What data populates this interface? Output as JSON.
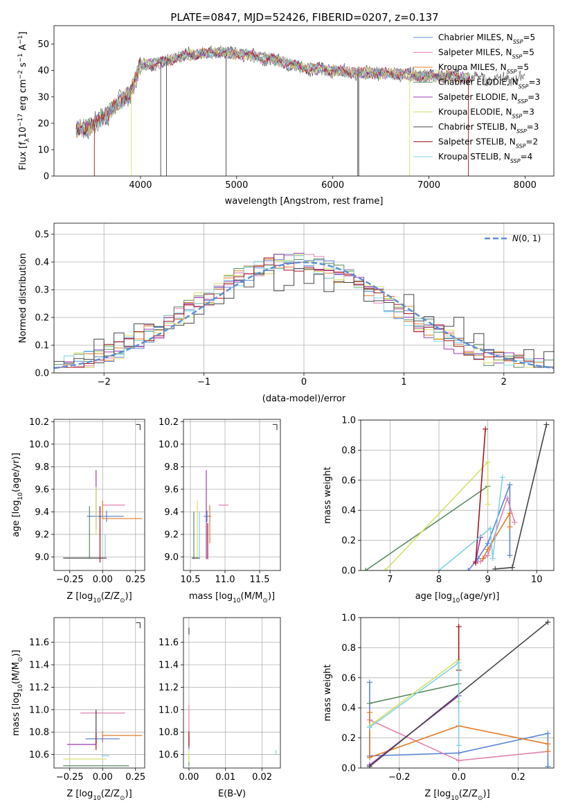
{
  "title": "PLATE=0847, MJD=52426, FIBERID=0207, z=0.137",
  "colors": [
    "#5b85d6",
    "#e082b0",
    "#e07b2a",
    "#5a8a62",
    "#9a3bb3",
    "#d6df6a",
    "#444444",
    "#a01520",
    "#7fd3df"
  ],
  "chart_data": [
    {
      "id": "spectrum",
      "type": "line",
      "xlabel": "wavelength [Angstrom, rest frame]",
      "ylabel": "Flux [f_λ 10^-17 erg cm^-2 s^-1 A^-1]",
      "ylabel_parts": {
        "a": "Flux [f",
        "b": "λ",
        "c": "10",
        "d": "−17",
        "e": " erg cm",
        "f": "−2",
        "g": " s",
        "h": "−1",
        "i": " A",
        "j": "−1",
        "k": "]"
      },
      "xlim": [
        3100,
        8300
      ],
      "ylim": [
        0,
        57
      ],
      "xticks": [
        4000,
        5000,
        6000,
        7000,
        8000
      ],
      "yticks": [
        0,
        10,
        20,
        30,
        40,
        50
      ],
      "grid": false,
      "legend_position": "top-right",
      "legend": [
        {
          "pre": "Chabrier MILES, N",
          "post": "=5"
        },
        {
          "pre": "Salpeter MILES, N",
          "post": "=5"
        },
        {
          "pre": "Kroupa MILES, N",
          "post": "=5"
        },
        {
          "pre": "Chabrier ELODIE, N",
          "post": "=3"
        },
        {
          "pre": "Salpeter ELODIE, N",
          "post": "=3"
        },
        {
          "pre": "Kroupa ELODIE, N",
          "post": "=3"
        },
        {
          "pre": "Chabrier STELIB, N",
          "post": "=3"
        },
        {
          "pre": "Salpeter STELIB, N",
          "post": "=2"
        },
        {
          "pre": "Kroupa STELIB, N",
          "post": "=4"
        }
      ],
      "legend_sub": "SSP",
      "series_range": [
        3330,
        7430
      ],
      "key_points": [
        [
          3330,
          18
        ],
        [
          3500,
          19
        ],
        [
          3700,
          25
        ],
        [
          3900,
          32
        ],
        [
          4000,
          42
        ],
        [
          4200,
          43
        ],
        [
          4500,
          46
        ],
        [
          4800,
          47
        ],
        [
          5100,
          46
        ],
        [
          5400,
          44
        ],
        [
          5700,
          41
        ],
        [
          6000,
          40
        ],
        [
          6300,
          39
        ],
        [
          6600,
          39
        ],
        [
          6900,
          38
        ],
        [
          7200,
          38
        ],
        [
          7430,
          37
        ]
      ]
    },
    {
      "id": "residuals",
      "type": "histogram",
      "xlabel": "(data-model)/error",
      "ylabel": "Normed distribution",
      "xlim": [
        -2.5,
        2.5
      ],
      "ylim": [
        0,
        0.54
      ],
      "xticks": [
        -2,
        -1,
        0,
        1,
        2
      ],
      "xtick_labels": [
        "−2",
        "−1",
        "0",
        "1",
        "2"
      ],
      "yticks": [
        0.0,
        0.1,
        0.2,
        0.3,
        0.4,
        0.5
      ],
      "ytick_labels": [
        "0.0",
        "0.1",
        "0.2",
        "0.3",
        "0.4",
        "0.5"
      ],
      "grid": true,
      "bin_width": 0.1,
      "reference": {
        "label": "N(0,1)",
        "mean": 0,
        "sigma": 1,
        "style": "dashed"
      },
      "legend_position": "top-right"
    },
    {
      "id": "age-vs-Z",
      "type": "scatter",
      "xlabel": "Z [log10(Z/Z⊙)]",
      "ylabel": "age [log10(age/yr)]",
      "xlim": [
        -0.37,
        0.32
      ],
      "ylim": [
        8.88,
        10.22
      ],
      "xticks": [
        -0.25,
        0.0,
        0.25
      ],
      "xtick_labels": [
        "−0.25",
        "0.00",
        "0.25"
      ],
      "yticks": [
        9.0,
        9.2,
        9.4,
        9.6,
        9.8,
        10.0,
        10.2
      ],
      "ytick_labels": [
        "9.0",
        "9.2",
        "9.4",
        "9.6",
        "9.8",
        "10.0",
        "10.2"
      ],
      "grid": true,
      "points": [
        {
          "x": 0.03,
          "y": 9.36,
          "xerr": [
            0.15,
            0.13
          ],
          "yerr": [
            0.05,
            0.05
          ]
        },
        {
          "x": 0.0,
          "y": 9.46,
          "xerr": [
            0.0,
            0.17
          ],
          "yerr": [
            0.0,
            0.0
          ]
        },
        {
          "x": 0.0,
          "y": 9.34,
          "xerr": [
            0.0,
            0.3
          ],
          "yerr": [
            0.0,
            0.16
          ]
        },
        {
          "x": -0.1,
          "y": 9.45,
          "xerr": [
            0.0,
            0.0
          ],
          "yerr": [
            0.46,
            0.0
          ]
        },
        {
          "x": -0.05,
          "y": 9.5,
          "xerr": [
            0.0,
            0.0
          ],
          "yerr": [
            0.25,
            0.27
          ]
        },
        {
          "x": -0.05,
          "y": 9.4,
          "xerr": [
            0.0,
            0.0
          ],
          "yerr": [
            0.2,
            0.22
          ]
        },
        {
          "x": -0.1,
          "y": 8.99,
          "xerr": [
            0.2,
            0.13
          ],
          "yerr": [
            0.0,
            0.0
          ]
        },
        {
          "x": -0.02,
          "y": 9.35,
          "xerr": [
            0.0,
            0.0
          ],
          "yerr": [
            0.4,
            0.1
          ]
        },
        {
          "x": 0.02,
          "y": 9.1,
          "xerr": [
            0.0,
            0.0
          ],
          "yerr": [
            0.1,
            0.1
          ]
        }
      ],
      "corner_marker": {
        "x": 0.28,
        "y": 10.15
      }
    },
    {
      "id": "age-vs-mass",
      "type": "scatter",
      "xlabel": "mass [log10(M/M⊙)]",
      "ylabel": "",
      "xlim": [
        10.4,
        11.8
      ],
      "ylim": [
        8.88,
        10.22
      ],
      "xticks": [
        10.5,
        11.0,
        11.5
      ],
      "xtick_labels": [
        "10.5",
        "11.0",
        "11.5"
      ],
      "yticks": [
        9.0,
        9.2,
        9.4,
        9.6,
        9.8,
        10.0,
        10.2
      ],
      "ytick_labels": [
        "9.0",
        "9.2",
        "9.4",
        "9.6",
        "9.8",
        "10.0",
        "10.2"
      ],
      "grid": true,
      "points": [
        {
          "x": 10.74,
          "y": 9.36,
          "xerr": [
            0.05,
            0.05
          ],
          "yerr": [
            0.05,
            0.05
          ]
        },
        {
          "x": 10.98,
          "y": 9.46,
          "xerr": [
            0.07,
            0.07
          ],
          "yerr": [
            0.0,
            0.0
          ]
        },
        {
          "x": 10.78,
          "y": 9.36,
          "xerr": [
            0.02,
            0.02
          ],
          "yerr": [
            0.24,
            0.1
          ]
        },
        {
          "x": 10.55,
          "y": 9.3,
          "xerr": [
            0.0,
            0.0
          ],
          "yerr": [
            0.32,
            0.1
          ]
        },
        {
          "x": 10.73,
          "y": 9.5,
          "xerr": [
            0.0,
            0.0
          ],
          "yerr": [
            0.52,
            0.27
          ]
        },
        {
          "x": 10.6,
          "y": 9.4,
          "xerr": [
            0.0,
            0.0
          ],
          "yerr": [
            0.42,
            0.1
          ]
        },
        {
          "x": 10.58,
          "y": 8.99,
          "xerr": [
            0.06,
            0.06
          ],
          "yerr": [
            0.0,
            0.0
          ]
        },
        {
          "x": 10.75,
          "y": 9.2,
          "xerr": [
            0.0,
            0.0
          ],
          "yerr": [
            0.22,
            0.1
          ]
        },
        {
          "x": 10.63,
          "y": 9.3,
          "xerr": [
            0.0,
            0.0
          ],
          "yerr": [
            0.32,
            0.1
          ]
        }
      ],
      "corner_marker": {
        "x": 11.74,
        "y": 10.15
      }
    },
    {
      "id": "weight-vs-age",
      "type": "line",
      "xlabel": "age [log10(age/yr)]",
      "ylabel": "mass weight",
      "xlim": [
        6.4,
        10.35
      ],
      "ylim": [
        0,
        1.0
      ],
      "xticks": [
        7,
        8,
        9,
        10
      ],
      "xtick_labels": [
        "7",
        "8",
        "9",
        "10"
      ],
      "yticks": [
        0.0,
        0.2,
        0.4,
        0.6,
        0.8,
        1.0
      ],
      "ytick_labels": [
        "0.0",
        "0.2",
        "0.4",
        "0.6",
        "0.8",
        "1.0"
      ],
      "grid": true,
      "series": [
        {
          "x": [
            8.6,
            8.8,
            9.0,
            9.45,
            9.45
          ],
          "y": [
            0.0,
            0.08,
            0.18,
            0.57,
            0.1
          ]
        },
        {
          "x": [
            8.85,
            9.0,
            9.4,
            9.55
          ],
          "y": [
            0.06,
            0.1,
            0.48,
            0.32
          ]
        },
        {
          "x": [
            8.9,
            9.0,
            9.45,
            9.45
          ],
          "y": [
            0.08,
            0.14,
            0.38,
            0.29
          ]
        },
        {
          "x": [
            6.5,
            9.0
          ],
          "y": [
            0.0,
            0.56
          ]
        },
        {
          "x": [
            8.75,
            8.85
          ],
          "y": [
            0.06,
            0.22
          ]
        },
        {
          "x": [
            6.9,
            9.0,
            9.0
          ],
          "y": [
            0.0,
            0.72,
            0.44
          ]
        },
        {
          "x": [
            9.15,
            9.5,
            10.2
          ],
          "y": [
            0.01,
            0.02,
            0.97
          ]
        },
        {
          "x": [
            8.75,
            8.95
          ],
          "y": [
            0.05,
            0.94
          ]
        },
        {
          "x": [
            8.0,
            9.05,
            9.1,
            9.3
          ],
          "y": [
            0.0,
            0.28,
            0.08,
            0.62
          ]
        }
      ]
    },
    {
      "id": "mass-vs-Z",
      "type": "scatter",
      "xlabel": "Z [log10(Z/Z⊙)]",
      "ylabel": "mass [log10(M/M⊙)]",
      "xlim": [
        -0.37,
        0.32
      ],
      "ylim": [
        10.48,
        11.82
      ],
      "xticks": [
        -0.25,
        0.0,
        0.25
      ],
      "xtick_labels": [
        "−0.25",
        "0.00",
        "0.25"
      ],
      "yticks": [
        10.6,
        10.8,
        11.0,
        11.2,
        11.4,
        11.6
      ],
      "ytick_labels": [
        "10.6",
        "10.8",
        "11.0",
        "11.2",
        "11.4",
        "11.6"
      ],
      "grid": true,
      "points": [
        {
          "x": 0.0,
          "y": 10.74,
          "xerr": [
            0.13,
            0.13
          ],
          "yerr": [
            0.03,
            0.03
          ]
        },
        {
          "x": 0.0,
          "y": 10.97,
          "xerr": [
            0.17,
            0.17
          ],
          "yerr": [
            0.0,
            0.0
          ]
        },
        {
          "x": 0.0,
          "y": 10.77,
          "xerr": [
            0.0,
            0.3
          ],
          "yerr": [
            0.04,
            0.04
          ]
        },
        {
          "x": -0.05,
          "y": 10.5,
          "xerr": [
            0.25,
            0.25
          ],
          "yerr": [
            0.0,
            0.0
          ]
        },
        {
          "x": -0.05,
          "y": 10.69,
          "xerr": [
            0.22,
            0.0
          ],
          "yerr": [
            0.0,
            0.03
          ]
        },
        {
          "x": -0.1,
          "y": 10.56,
          "xerr": [
            0.2,
            0.13
          ],
          "yerr": [
            0.0,
            0.0
          ]
        },
        {
          "x": -0.05,
          "y": 10.9,
          "xerr": [
            0.0,
            0.0
          ],
          "yerr": [
            0.2,
            0.1
          ]
        },
        {
          "x": -0.05,
          "y": 10.74,
          "xerr": [
            0.0,
            0.0
          ],
          "yerr": [
            0.1,
            0.05
          ]
        },
        {
          "x": 0.02,
          "y": 10.59,
          "xerr": [
            0.03,
            0.03
          ],
          "yerr": [
            0.0,
            0.0
          ]
        }
      ],
      "corner_marker": {
        "x": 0.28,
        "y": 11.75
      }
    },
    {
      "id": "mass-vs-EBV",
      "type": "scatter",
      "xlabel": "E(B-V)",
      "ylabel": "",
      "xlim": [
        -0.0015,
        0.025
      ],
      "ylim": [
        10.48,
        11.82
      ],
      "xticks": [
        0.0,
        0.01,
        0.02
      ],
      "xtick_labels": [
        "0.00",
        "0.01",
        "0.02"
      ],
      "yticks": [
        10.6,
        10.8,
        11.0,
        11.2,
        11.4,
        11.6
      ],
      "ytick_labels": [
        "10.6",
        "10.8",
        "11.0",
        "11.2",
        "11.4",
        "11.6"
      ],
      "grid": true,
      "points": [
        {
          "x": 0.0,
          "y": 10.74,
          "xerr": [
            0.0,
            0.0
          ],
          "yerr": [
            0.05,
            0.05
          ]
        },
        {
          "x": 0.0,
          "y": 10.97,
          "xerr": [
            0.0,
            0.0
          ],
          "yerr": [
            0.15,
            0.07
          ]
        },
        {
          "x": 0.0,
          "y": 10.77,
          "xerr": [
            0.0,
            0.0
          ],
          "yerr": [
            0.06,
            0.04
          ]
        },
        {
          "x": 0.0,
          "y": 10.55,
          "xerr": [
            0.0,
            0.0
          ],
          "yerr": [
            0.05,
            0.05
          ]
        },
        {
          "x": 0.0,
          "y": 10.69,
          "xerr": [
            0.0,
            0.0
          ],
          "yerr": [
            0.04,
            0.04
          ]
        },
        {
          "x": 0.0,
          "y": 10.58,
          "xerr": [
            0.0,
            0.0
          ],
          "yerr": [
            0.05,
            0.05
          ]
        },
        {
          "x": 0.0,
          "y": 11.7,
          "xerr": [
            0.0,
            0.0
          ],
          "yerr": [
            0.03,
            0.03
          ]
        },
        {
          "x": 0.0,
          "y": 10.74,
          "xerr": [
            0.0,
            0.0
          ],
          "yerr": [
            0.07,
            0.07
          ]
        },
        {
          "x": 0.0238,
          "y": 10.62,
          "xerr": [
            0.0,
            0.0
          ],
          "yerr": [
            0.02,
            0.02
          ]
        }
      ]
    },
    {
      "id": "weight-vs-Z",
      "type": "line",
      "xlabel": "Z [log10(Z/Z⊙)]",
      "ylabel": "mass weight",
      "xlim": [
        -0.33,
        0.32
      ],
      "ylim": [
        0,
        1.0
      ],
      "xticks": [
        -0.2,
        0.0,
        0.2
      ],
      "xtick_labels": [
        "−0.2",
        "0.0",
        "0.2"
      ],
      "yticks": [
        0.0,
        0.2,
        0.4,
        0.6,
        0.8,
        1.0
      ],
      "ytick_labels": [
        "0.0",
        "0.2",
        "0.4",
        "0.6",
        "0.8",
        "1.0"
      ],
      "grid": true,
      "series": [
        {
          "x": [
            -0.3,
            -0.3,
            0.0,
            0.3,
            0.3
          ],
          "y": [
            0.57,
            0.08,
            0.1,
            0.23,
            0.01
          ]
        },
        {
          "x": [
            -0.3,
            0.0,
            0.3
          ],
          "y": [
            0.32,
            0.05,
            0.11
          ]
        },
        {
          "x": [
            -0.3,
            -0.3,
            0.0,
            0.3,
            0.3
          ],
          "y": [
            0.37,
            0.07,
            0.28,
            0.16,
            0.11
          ]
        },
        {
          "x": [
            -0.3,
            0.0
          ],
          "y": [
            0.43,
            0.56
          ]
        },
        {
          "x": [
            -0.3,
            0.0
          ],
          "y": [
            0.02,
            0.48
          ]
        },
        {
          "x": [
            -0.3,
            0.0,
            0.0
          ],
          "y": [
            0.28,
            0.72,
            0.44
          ]
        },
        {
          "x": [
            -0.3,
            0.3
          ],
          "y": [
            0.01,
            0.97
          ]
        },
        {
          "x": [
            0.0,
            0.0
          ],
          "y": [
            0.65,
            0.94
          ]
        },
        {
          "x": [
            -0.3,
            0.0,
            0.0
          ],
          "y": [
            0.27,
            0.7,
            0.15
          ]
        }
      ]
    }
  ]
}
